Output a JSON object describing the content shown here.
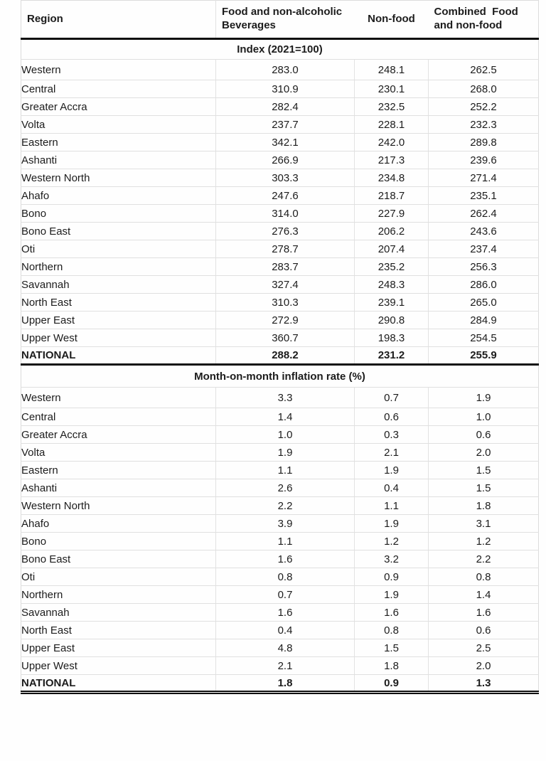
{
  "colors": {
    "text": "#1c1c1c",
    "gridline": "#e0e0e0",
    "rule": "#0f0f0f",
    "background": "#fefefe"
  },
  "table": {
    "columns": [
      "Region",
      "Food and non-alcoholic\nBeverages",
      "Non-food",
      "Combined  Food\nand non-food"
    ],
    "sections": [
      {
        "title": "Index (2021=100)",
        "rows": [
          {
            "region": "Western",
            "values": [
              "283.0",
              "248.1",
              "262.5"
            ]
          },
          {
            "region": "Central",
            "values": [
              "310.9",
              "230.1",
              "268.0"
            ]
          },
          {
            "region": "Greater Accra",
            "values": [
              "282.4",
              "232.5",
              "252.2"
            ]
          },
          {
            "region": "Volta",
            "values": [
              "237.7",
              "228.1",
              "232.3"
            ]
          },
          {
            "region": "Eastern",
            "values": [
              "342.1",
              "242.0",
              "289.8"
            ]
          },
          {
            "region": "Ashanti",
            "values": [
              "266.9",
              "217.3",
              "239.6"
            ]
          },
          {
            "region": "Western North",
            "values": [
              "303.3",
              "234.8",
              "271.4"
            ]
          },
          {
            "region": "Ahafo",
            "values": [
              "247.6",
              "218.7",
              "235.1"
            ]
          },
          {
            "region": "Bono",
            "values": [
              "314.0",
              "227.9",
              "262.4"
            ]
          },
          {
            "region": "Bono East",
            "values": [
              "276.3",
              "206.2",
              "243.6"
            ]
          },
          {
            "region": "Oti",
            "values": [
              "278.7",
              "207.4",
              "237.4"
            ]
          },
          {
            "region": "Northern",
            "values": [
              "283.7",
              "235.2",
              "256.3"
            ]
          },
          {
            "region": "Savannah",
            "values": [
              "327.4",
              "248.3",
              "286.0"
            ]
          },
          {
            "region": "North East",
            "values": [
              "310.3",
              "239.1",
              "265.0"
            ]
          },
          {
            "region": "Upper East",
            "values": [
              "272.9",
              "290.8",
              "284.9"
            ]
          },
          {
            "region": "Upper West",
            "values": [
              "360.7",
              "198.3",
              "254.5"
            ]
          },
          {
            "region": "NATIONAL",
            "values": [
              "288.2",
              "231.2",
              "255.9"
            ],
            "bold": true
          }
        ]
      },
      {
        "title": "Month-on-month inflation rate (%)",
        "rows": [
          {
            "region": "Western",
            "values": [
              "3.3",
              "0.7",
              "1.9"
            ]
          },
          {
            "region": "Central",
            "values": [
              "1.4",
              "0.6",
              "1.0"
            ]
          },
          {
            "region": "Greater Accra",
            "values": [
              "1.0",
              "0.3",
              "0.6"
            ]
          },
          {
            "region": "Volta",
            "values": [
              "1.9",
              "2.1",
              "2.0"
            ]
          },
          {
            "region": "Eastern",
            "values": [
              "1.1",
              "1.9",
              "1.5"
            ]
          },
          {
            "region": "Ashanti",
            "values": [
              "2.6",
              "0.4",
              "1.5"
            ]
          },
          {
            "region": "Western North",
            "values": [
              "2.2",
              "1.1",
              "1.8"
            ]
          },
          {
            "region": "Ahafo",
            "values": [
              "3.9",
              "1.9",
              "3.1"
            ]
          },
          {
            "region": "Bono",
            "values": [
              "1.1",
              "1.2",
              "1.2"
            ]
          },
          {
            "region": "Bono East",
            "values": [
              "1.6",
              "3.2",
              "2.2"
            ]
          },
          {
            "region": "Oti",
            "values": [
              "0.8",
              "0.9",
              "0.8"
            ]
          },
          {
            "region": "Northern",
            "values": [
              "0.7",
              "1.9",
              "1.4"
            ]
          },
          {
            "region": "Savannah",
            "values": [
              "1.6",
              "1.6",
              "1.6"
            ]
          },
          {
            "region": "North East",
            "values": [
              "0.4",
              "0.8",
              "0.6"
            ]
          },
          {
            "region": "Upper East",
            "values": [
              "4.8",
              "1.5",
              "2.5"
            ]
          },
          {
            "region": "Upper West",
            "values": [
              "2.1",
              "1.8",
              "2.0"
            ]
          },
          {
            "region": "NATIONAL",
            "values": [
              "1.8",
              "0.9",
              "1.3"
            ],
            "bold": true
          }
        ]
      }
    ]
  }
}
